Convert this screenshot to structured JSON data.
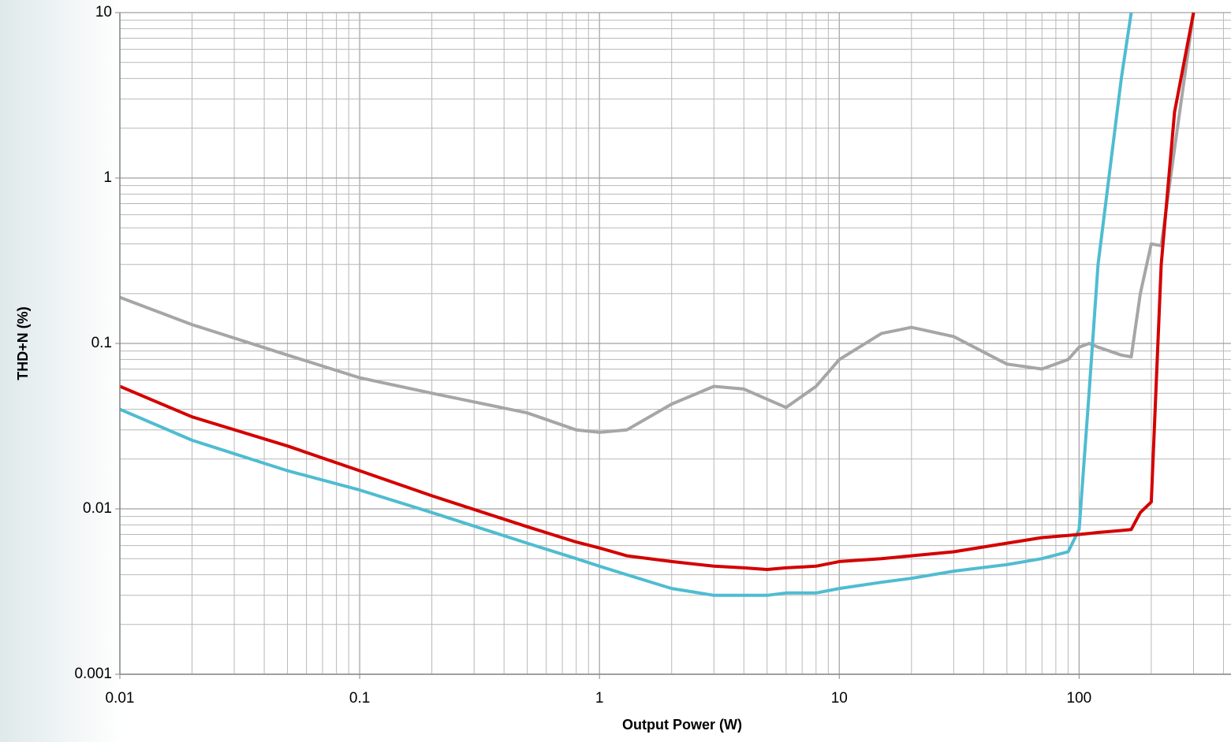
{
  "chart_data": {
    "type": "line",
    "xlabel": "Output Power (W)",
    "ylabel": "THD+N (%)",
    "xscale": "log",
    "yscale": "log",
    "xlim": [
      0.01,
      430
    ],
    "ylim": [
      0.001,
      10
    ],
    "xticks": [
      0.01,
      0.1,
      1,
      10,
      100
    ],
    "yticks": [
      0.001,
      0.01,
      0.1,
      1,
      10
    ],
    "grid": true,
    "minor_grid": true,
    "x": [
      0.01,
      0.02,
      0.05,
      0.1,
      0.2,
      0.5,
      0.8,
      1,
      1.3,
      2,
      3,
      4,
      5,
      6,
      8,
      10,
      15,
      20,
      30,
      50,
      70,
      90,
      100,
      110,
      120,
      150,
      165,
      180,
      200,
      220,
      250,
      300
    ],
    "series": [
      {
        "color": "#a6a6a6",
        "values": [
          0.19,
          0.13,
          0.085,
          0.062,
          0.05,
          0.038,
          0.03,
          0.029,
          0.03,
          0.043,
          0.055,
          0.053,
          0.046,
          0.041,
          0.055,
          0.08,
          0.115,
          0.125,
          0.11,
          0.075,
          0.07,
          0.08,
          0.095,
          0.1,
          0.095,
          0.085,
          0.083,
          0.2,
          0.4,
          0.39,
          1.5,
          10
        ]
      },
      {
        "color": "#4fbcd1",
        "values": [
          0.04,
          0.026,
          0.017,
          0.013,
          0.0095,
          0.0062,
          0.005,
          0.0045,
          0.004,
          0.0033,
          0.003,
          0.003,
          0.003,
          0.0031,
          0.0031,
          0.0033,
          0.0036,
          0.0038,
          0.0042,
          0.0046,
          0.005,
          0.0055,
          0.0075,
          0.05,
          0.3,
          4,
          10,
          null,
          null,
          null,
          null,
          null
        ]
      },
      {
        "color": "#d40000",
        "values": [
          0.055,
          0.036,
          0.024,
          0.017,
          0.012,
          0.0078,
          0.0063,
          0.0058,
          0.0052,
          0.0048,
          0.0045,
          0.0044,
          0.0043,
          0.0044,
          0.0045,
          0.0048,
          0.005,
          0.0052,
          0.0055,
          0.0062,
          0.0067,
          0.0069,
          0.007,
          0.0071,
          0.0072,
          0.0074,
          0.0075,
          0.0095,
          0.011,
          0.3,
          2.5,
          10
        ]
      }
    ]
  }
}
